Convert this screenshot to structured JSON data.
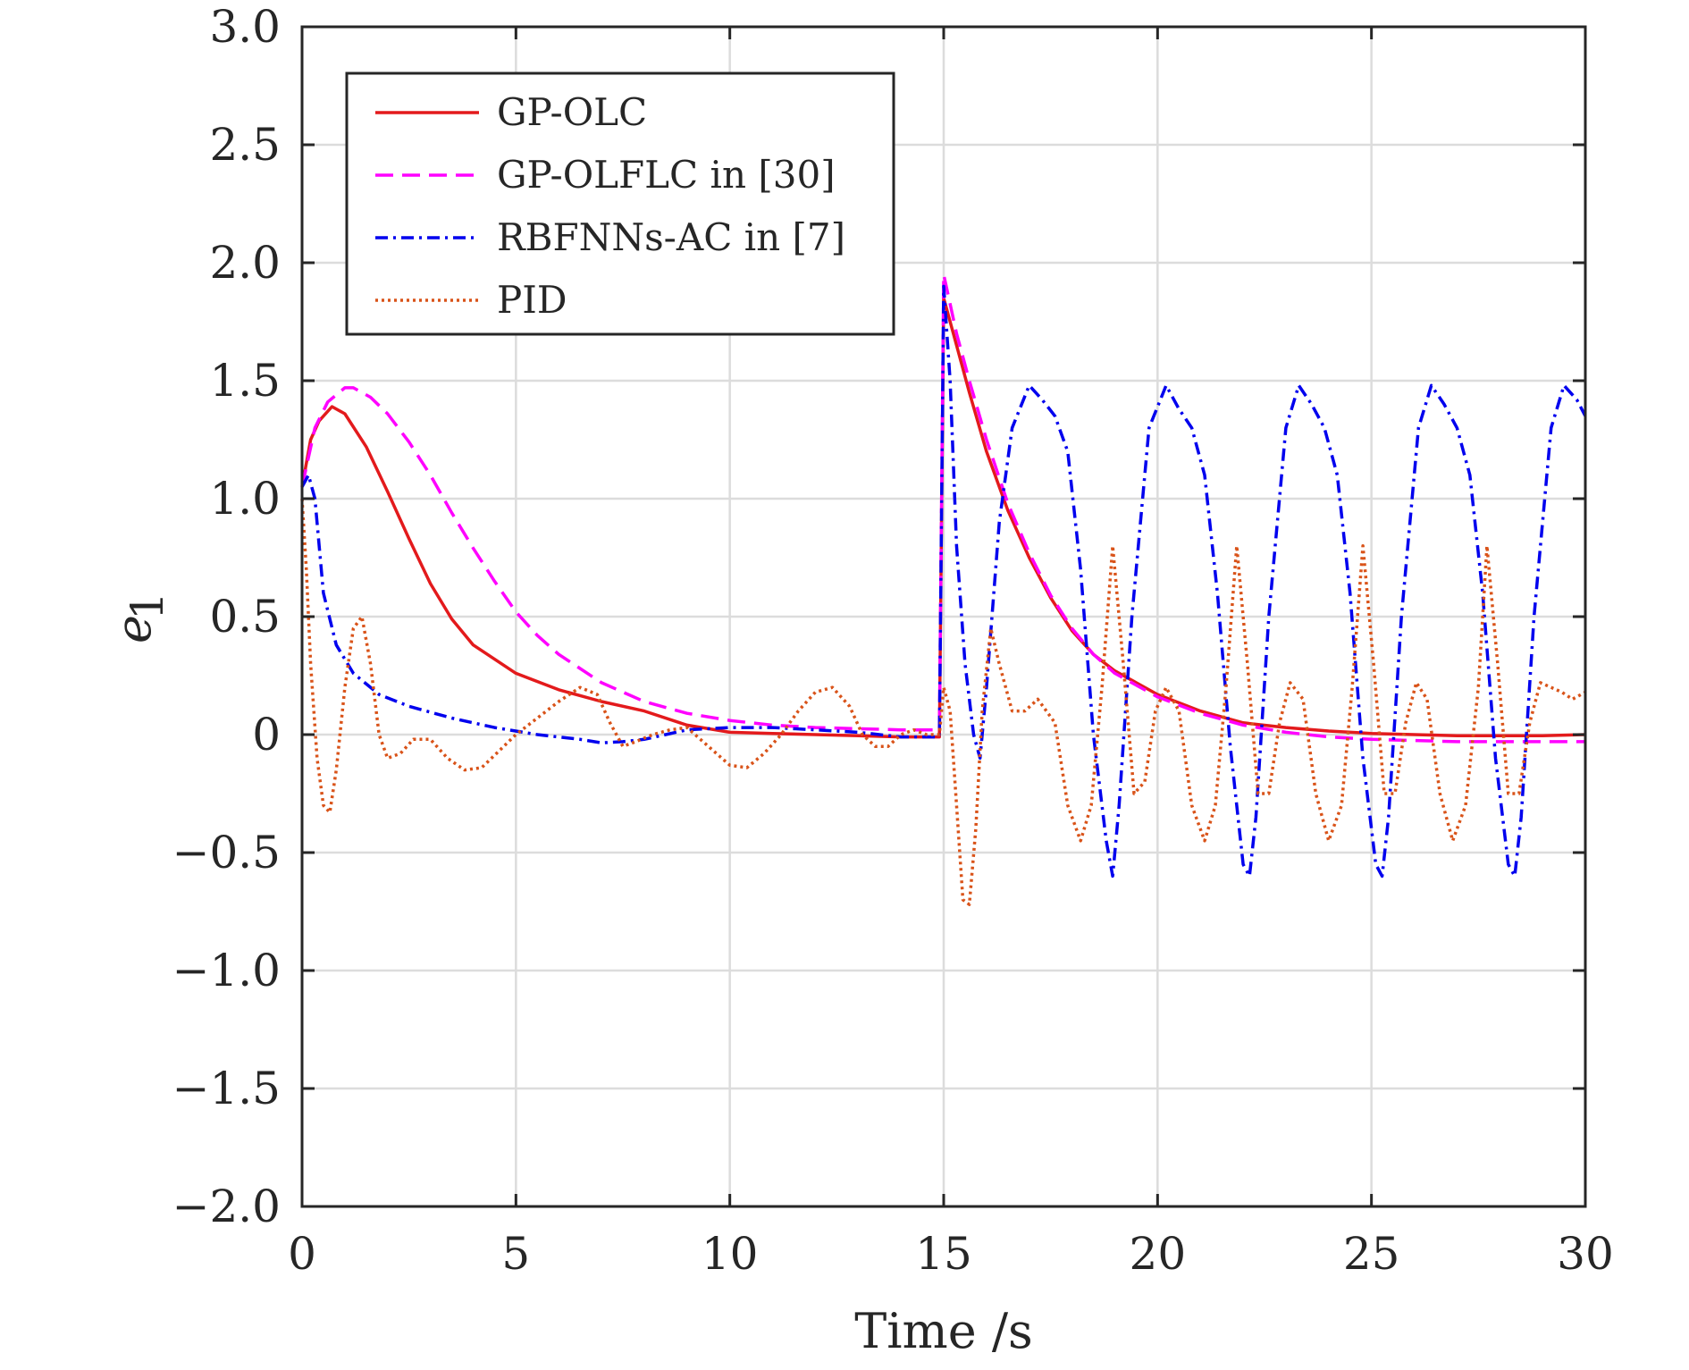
{
  "chart_data": {
    "type": "line",
    "xlabel": "Time /s",
    "ylabel": "e",
    "ylabel_subscript": "1",
    "xlim": [
      0,
      30
    ],
    "ylim": [
      -2.0,
      3.0
    ],
    "xticks": [
      0,
      5,
      10,
      15,
      20,
      25,
      30
    ],
    "xtick_labels": [
      "0",
      "5",
      "10",
      "15",
      "20",
      "25",
      "30"
    ],
    "yticks": [
      3.0,
      2.5,
      2.0,
      1.5,
      1.0,
      0.5,
      0,
      -0.5,
      -1.0,
      -1.5,
      -2.0
    ],
    "ytick_labels": [
      "3.0",
      "2.5",
      "2.0",
      "1.5",
      "1.0",
      "0.5",
      "0",
      "−0.5",
      "−1.0",
      "−1.5",
      "−2.0"
    ],
    "grid": true,
    "legend_position": "top-left",
    "series": [
      {
        "name": "GP-OLC",
        "color": "#e31a1c",
        "style": "solid",
        "x": [
          0,
          0.2,
          0.4,
          0.7,
          1.0,
          1.5,
          2.0,
          2.5,
          3.0,
          3.5,
          4.0,
          5.0,
          6.0,
          7.0,
          8.0,
          9.0,
          10.0,
          11.0,
          12.0,
          13.0,
          14.0,
          14.9,
          15.0,
          15.3,
          15.6,
          16.0,
          16.5,
          17.0,
          17.5,
          18.0,
          18.5,
          19.0,
          20.0,
          21.0,
          22.0,
          23.0,
          24.0,
          25.0,
          26.0,
          27.0,
          28.0,
          29.0,
          30.0
        ],
        "values": [
          1.05,
          1.25,
          1.33,
          1.39,
          1.36,
          1.22,
          1.03,
          0.83,
          0.64,
          0.49,
          0.38,
          0.26,
          0.19,
          0.14,
          0.1,
          0.04,
          0.01,
          0.005,
          0.0,
          -0.005,
          -0.01,
          -0.01,
          1.85,
          1.65,
          1.45,
          1.2,
          0.95,
          0.75,
          0.58,
          0.44,
          0.34,
          0.27,
          0.17,
          0.1,
          0.05,
          0.03,
          0.015,
          0.005,
          0.0,
          -0.005,
          -0.005,
          -0.005,
          0.0
        ]
      },
      {
        "name": "GP-OLFLC in [30]",
        "color": "#ff00ff",
        "style": "dashed",
        "x": [
          0,
          0.3,
          0.6,
          1.0,
          1.2,
          1.6,
          2.0,
          2.5,
          3.0,
          3.5,
          4.0,
          4.5,
          5.0,
          5.5,
          6.0,
          7.0,
          8.0,
          9.0,
          10.0,
          11.0,
          12.0,
          13.0,
          14.0,
          14.9,
          15.0,
          15.3,
          15.6,
          16.0,
          16.5,
          17.0,
          17.5,
          18.0,
          18.5,
          19.0,
          20.0,
          21.0,
          22.0,
          23.0,
          24.0,
          25.0,
          26.0,
          27.0,
          28.0,
          29.0,
          30.0
        ],
        "values": [
          1.05,
          1.3,
          1.41,
          1.47,
          1.47,
          1.43,
          1.36,
          1.24,
          1.1,
          0.94,
          0.79,
          0.65,
          0.52,
          0.42,
          0.34,
          0.22,
          0.14,
          0.09,
          0.06,
          0.04,
          0.03,
          0.025,
          0.02,
          0.02,
          1.95,
          1.7,
          1.5,
          1.25,
          0.98,
          0.77,
          0.59,
          0.45,
          0.34,
          0.26,
          0.16,
          0.09,
          0.04,
          0.01,
          -0.01,
          -0.02,
          -0.025,
          -0.03,
          -0.03,
          -0.03,
          -0.03
        ]
      },
      {
        "name": "RBFNNs-AC in [7]",
        "color": "#0000ee",
        "style": "dashdot",
        "x": [
          0,
          0.15,
          0.3,
          0.5,
          0.8,
          1.2,
          1.8,
          2.5,
          3.5,
          4.5,
          5.5,
          6.5,
          7.0,
          7.5,
          8.0,
          8.5,
          9.0,
          10.0,
          11.0,
          12.0,
          13.0,
          14.0,
          14.9,
          15.0,
          15.15,
          15.3,
          15.5,
          15.7,
          15.85,
          16.0,
          16.3,
          16.6,
          17.0,
          17.3,
          17.6,
          17.9,
          18.2,
          18.5,
          18.8,
          18.95,
          19.1,
          19.4,
          19.8,
          20.2,
          20.5,
          20.8,
          21.1,
          21.4,
          21.7,
          22.0,
          22.15,
          22.3,
          22.6,
          23.0,
          23.3,
          23.6,
          23.9,
          24.2,
          24.5,
          24.8,
          25.1,
          25.25,
          25.4,
          25.7,
          26.1,
          26.4,
          26.7,
          27.0,
          27.3,
          27.6,
          27.9,
          28.2,
          28.35,
          28.5,
          28.8,
          29.2,
          29.5,
          29.8,
          30.0
        ],
        "values": [
          1.05,
          1.1,
          1.0,
          0.6,
          0.38,
          0.26,
          0.17,
          0.12,
          0.07,
          0.03,
          0.0,
          -0.02,
          -0.035,
          -0.03,
          -0.02,
          0.0,
          0.02,
          0.03,
          0.03,
          0.02,
          0.01,
          -0.01,
          -0.01,
          1.9,
          1.5,
          0.8,
          0.3,
          0.0,
          -0.1,
          0.2,
          0.9,
          1.3,
          1.48,
          1.42,
          1.35,
          1.2,
          0.7,
          0.0,
          -0.45,
          -0.6,
          -0.3,
          0.5,
          1.3,
          1.48,
          1.38,
          1.3,
          1.1,
          0.6,
          -0.05,
          -0.55,
          -0.6,
          -0.35,
          0.5,
          1.3,
          1.48,
          1.4,
          1.3,
          1.1,
          0.6,
          -0.1,
          -0.55,
          -0.6,
          -0.35,
          0.5,
          1.3,
          1.48,
          1.4,
          1.3,
          1.1,
          0.6,
          -0.1,
          -0.55,
          -0.6,
          -0.35,
          0.5,
          1.3,
          1.48,
          1.42,
          1.35
        ]
      },
      {
        "name": "PID",
        "color": "#d95319",
        "style": "dotted",
        "x": [
          0,
          0.1,
          0.2,
          0.35,
          0.5,
          0.65,
          0.8,
          1.0,
          1.2,
          1.4,
          1.6,
          1.8,
          2.0,
          2.3,
          2.6,
          3.0,
          3.4,
          3.8,
          4.2,
          4.6,
          5.0,
          5.5,
          6.0,
          6.5,
          6.9,
          7.2,
          7.5,
          7.8,
          8.2,
          8.6,
          9.0,
          9.5,
          10.0,
          10.4,
          10.8,
          11.2,
          11.6,
          12.0,
          12.4,
          12.8,
          13.1,
          13.4,
          13.7,
          14.0,
          14.3,
          14.6,
          14.9,
          15.0,
          15.15,
          15.3,
          15.45,
          15.6,
          15.75,
          15.9,
          16.1,
          16.3,
          16.6,
          16.9,
          17.2,
          17.6,
          17.9,
          18.2,
          18.45,
          18.7,
          18.95,
          19.2,
          19.45,
          19.7,
          19.95,
          20.2,
          20.5,
          20.8,
          21.1,
          21.35,
          21.6,
          21.85,
          22.1,
          22.35,
          22.6,
          22.85,
          23.1,
          23.4,
          23.7,
          24.0,
          24.3,
          24.55,
          24.8,
          25.05,
          25.3,
          25.55,
          25.8,
          26.05,
          26.3,
          26.6,
          26.9,
          27.2,
          27.5,
          27.7,
          27.95,
          28.2,
          28.45,
          28.7,
          28.95,
          29.2,
          29.45,
          29.7,
          30.0
        ],
        "values": [
          1.0,
          0.7,
          0.3,
          -0.1,
          -0.3,
          -0.33,
          -0.15,
          0.2,
          0.45,
          0.5,
          0.3,
          0.0,
          -0.1,
          -0.08,
          -0.02,
          -0.02,
          -0.1,
          -0.15,
          -0.14,
          -0.07,
          0.0,
          0.07,
          0.14,
          0.2,
          0.17,
          0.05,
          -0.05,
          -0.03,
          0.0,
          0.02,
          0.03,
          -0.05,
          -0.13,
          -0.14,
          -0.08,
          0.0,
          0.1,
          0.18,
          0.2,
          0.12,
          0.0,
          -0.05,
          -0.05,
          0.0,
          0.02,
          0.0,
          0.0,
          0.2,
          0.1,
          -0.3,
          -0.7,
          -0.72,
          -0.4,
          0.1,
          0.45,
          0.3,
          0.1,
          0.1,
          0.15,
          0.05,
          -0.3,
          -0.45,
          -0.3,
          0.2,
          0.8,
          0.3,
          -0.25,
          -0.2,
          0.1,
          0.2,
          0.1,
          -0.3,
          -0.45,
          -0.3,
          0.2,
          0.8,
          0.3,
          -0.25,
          -0.25,
          0.05,
          0.22,
          0.15,
          -0.25,
          -0.45,
          -0.3,
          0.2,
          0.8,
          0.3,
          -0.25,
          -0.25,
          0.05,
          0.22,
          0.15,
          -0.25,
          -0.45,
          -0.3,
          0.2,
          0.8,
          0.3,
          -0.25,
          -0.25,
          0.05,
          0.22,
          0.2,
          0.18,
          0.15,
          0.18
        ]
      }
    ]
  }
}
